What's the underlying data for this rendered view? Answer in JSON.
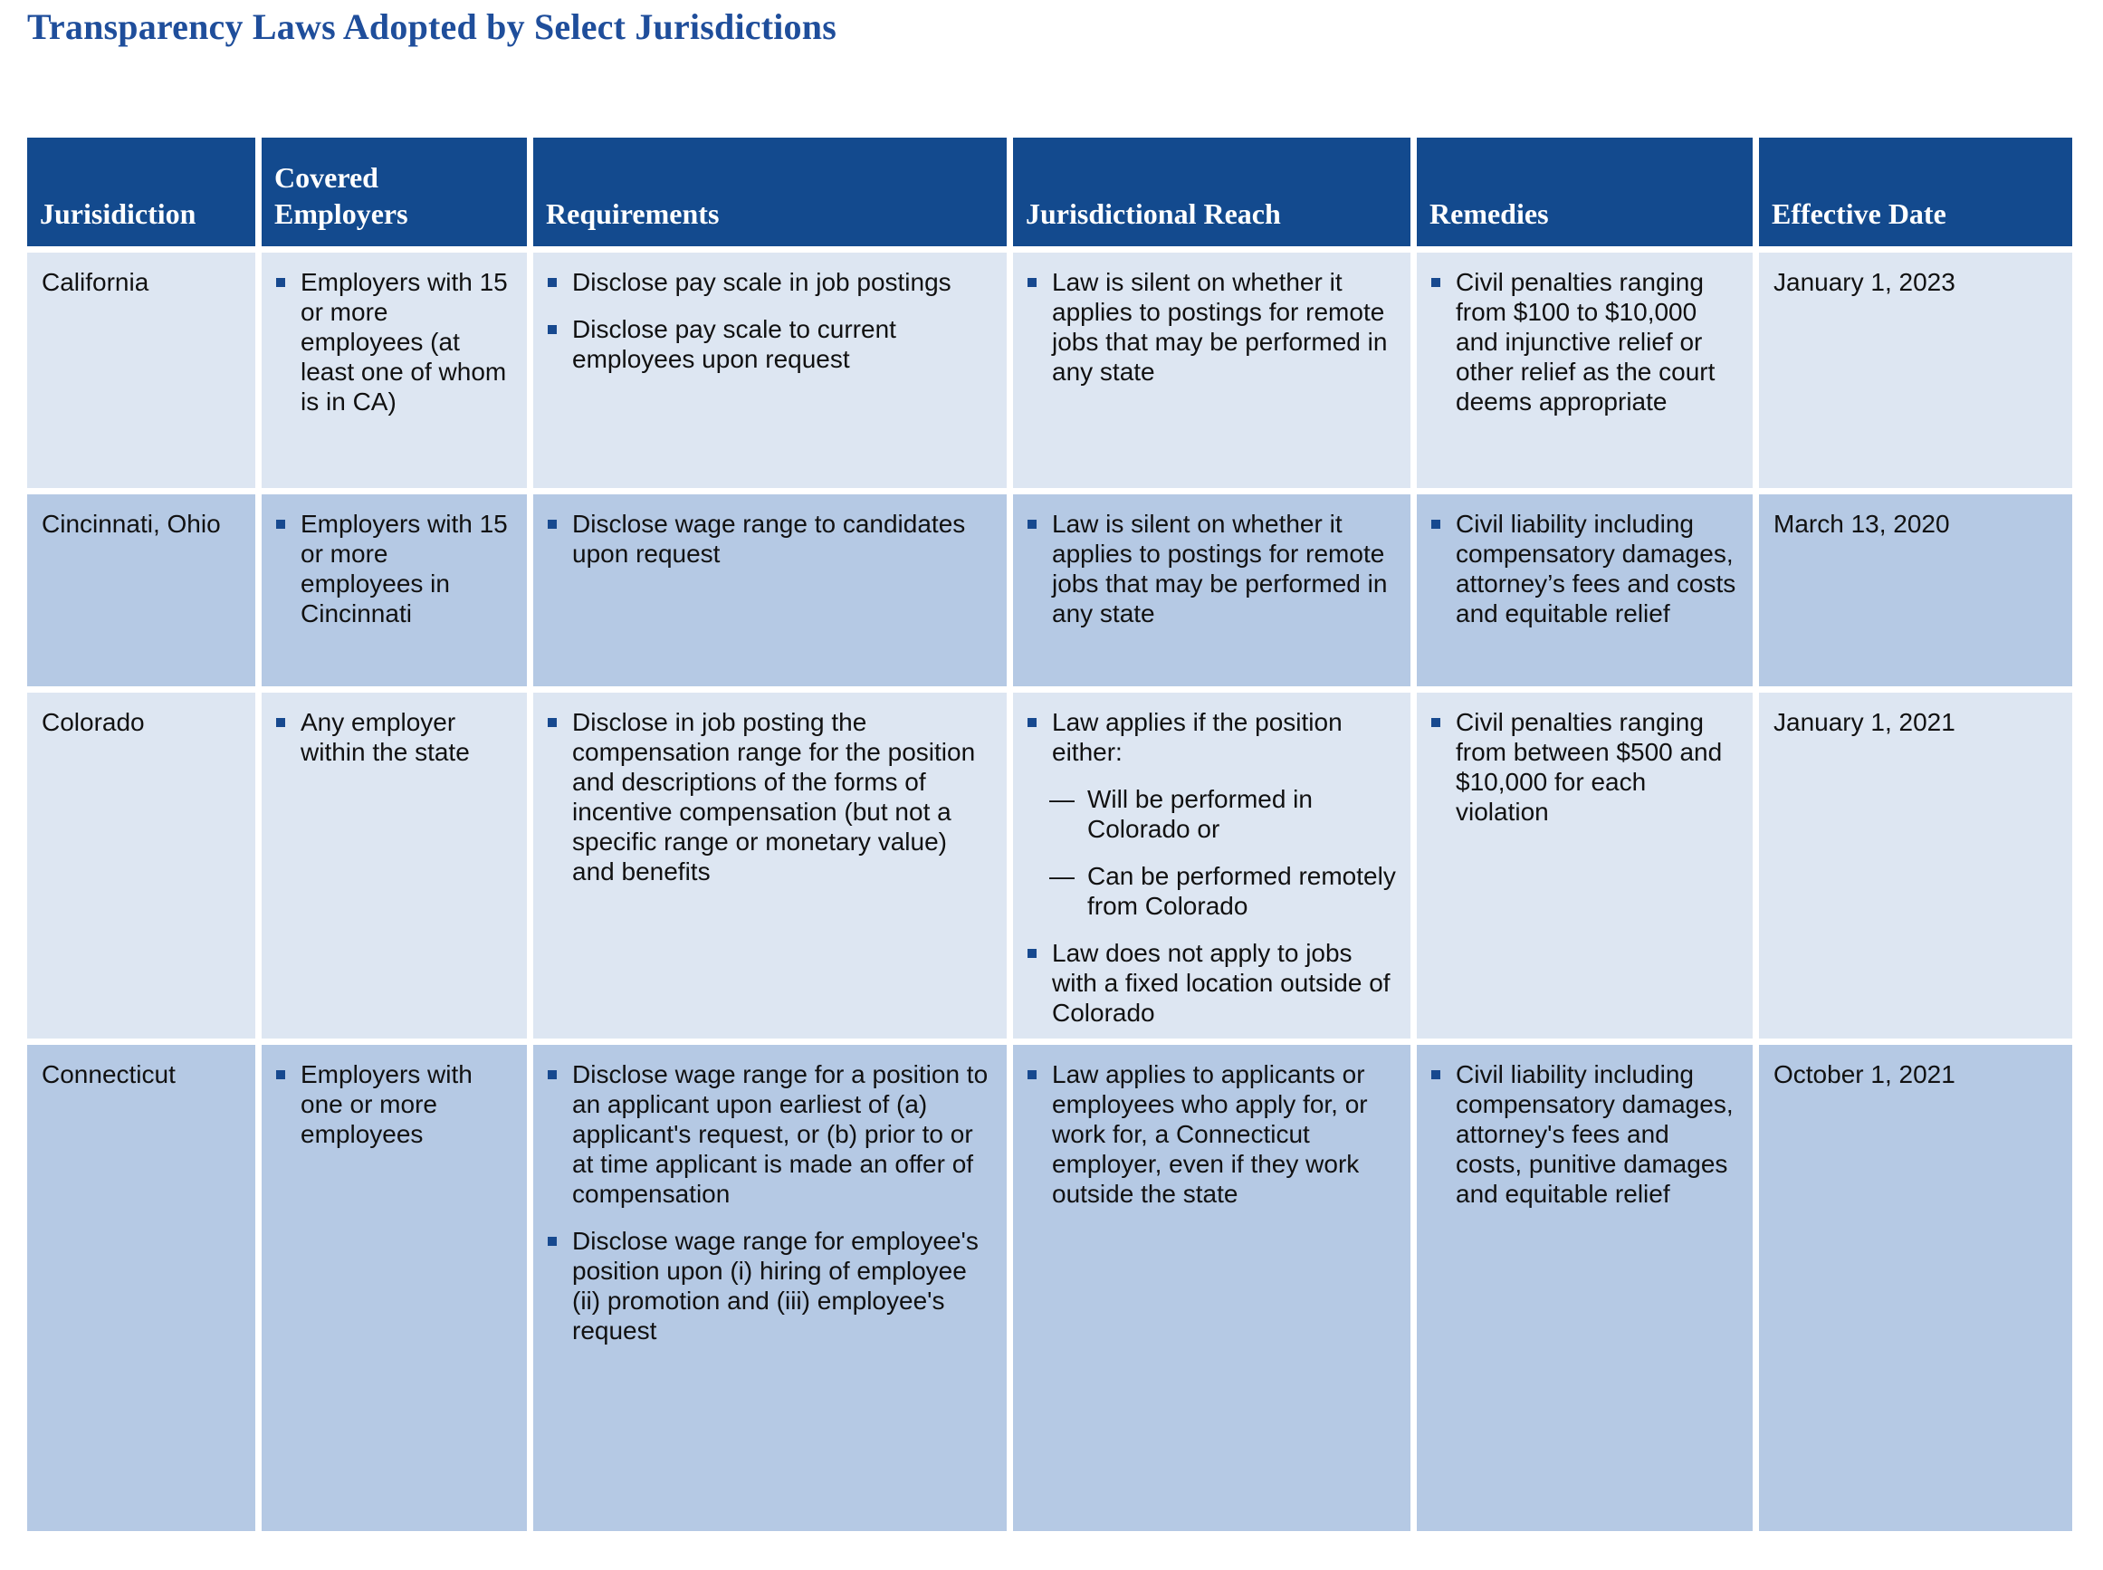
{
  "title": "Transparency Laws Adopted by Select Jurisdictions",
  "colors": {
    "title_text": "#1F4E9B",
    "header_bg": "#134A8E",
    "header_text": "#FFFFFF",
    "row_light_bg": "#DDE6F2",
    "row_dark_bg": "#B5C9E4",
    "bullet": "#17498F",
    "body_text": "#111111"
  },
  "table": {
    "columns": [
      {
        "key": "jurisdiction",
        "label": "Jurisidiction"
      },
      {
        "key": "covered_employers",
        "label": "Covered Employers"
      },
      {
        "key": "requirements",
        "label": "Requirements"
      },
      {
        "key": "jurisdictional_reach",
        "label": "Jurisdictional Reach"
      },
      {
        "key": "remedies",
        "label": "Remedies"
      },
      {
        "key": "effective_date",
        "label": "Effective Date"
      }
    ],
    "rows": [
      {
        "id": "california",
        "shade": "light",
        "jurisdiction": "California",
        "covered_employers": [
          {
            "marker": "square",
            "text": "Employers with 15 or more employees (at least one of whom is in CA)"
          }
        ],
        "requirements": [
          {
            "marker": "square",
            "text": "Disclose pay scale in job postings"
          },
          {
            "marker": "square",
            "text": "Disclose pay scale to current employees upon request"
          }
        ],
        "jurisdictional_reach": [
          {
            "marker": "square",
            "text": "Law is silent on whether it applies to postings for remote jobs that may be performed in any state"
          }
        ],
        "remedies": [
          {
            "marker": "square",
            "text": "Civil penalties ranging from $100 to $10,000 and injunctive relief or other relief as the court deems appropriate"
          }
        ],
        "effective_date": "January 1, 2023"
      },
      {
        "id": "cincinnati-ohio",
        "shade": "dark",
        "jurisdiction": "Cincinnati, Ohio",
        "covered_employers": [
          {
            "marker": "square",
            "text": "Employers with 15 or more employees in Cincinnati"
          }
        ],
        "requirements": [
          {
            "marker": "square",
            "text": "Disclose wage range to candidates upon request"
          }
        ],
        "jurisdictional_reach": [
          {
            "marker": "square",
            "text": "Law is silent on whether it applies to postings for remote jobs that may be performed in any state"
          }
        ],
        "remedies": [
          {
            "marker": "square",
            "text": "Civil liability including compensatory damages, attorney’s fees and costs and equitable relief"
          }
        ],
        "effective_date": "March 13, 2020"
      },
      {
        "id": "colorado",
        "shade": "light",
        "jurisdiction": "Colorado",
        "covered_employers": [
          {
            "marker": "square",
            "text": "Any employer within the state"
          }
        ],
        "requirements": [
          {
            "marker": "square",
            "text": "Disclose in job posting the compensation range for the position and descriptions of the forms of incentive compensation (but not a specific range or monetary value) and benefits"
          }
        ],
        "jurisdictional_reach": [
          {
            "marker": "square",
            "text": "Law applies if the position either:"
          },
          {
            "marker": "dash",
            "text": "Will be performed in Colorado or"
          },
          {
            "marker": "dash",
            "text": "Can be performed remotely from Colorado"
          },
          {
            "marker": "square",
            "text": "Law does not apply to jobs with a fixed location outside of Colorado"
          }
        ],
        "remedies": [
          {
            "marker": "square",
            "text": "Civil penalties ranging from between $500 and $10,000 for each violation"
          }
        ],
        "effective_date": "January 1, 2021"
      },
      {
        "id": "connecticut",
        "shade": "dark",
        "jurisdiction": "Connecticut",
        "covered_employers": [
          {
            "marker": "square",
            "text": "Employers with one or more employees"
          }
        ],
        "requirements": [
          {
            "marker": "square",
            "text": "Disclose wage range for a position to an applicant upon earliest of (a) applicant's request, or (b) prior to or at time applicant is made an offer of compensation"
          },
          {
            "marker": "square",
            "text": "Disclose wage range for employee's position upon (i) hiring of employee (ii) promotion and (iii) employee's request"
          }
        ],
        "jurisdictional_reach": [
          {
            "marker": "square",
            "text": "Law applies to applicants or employees who apply for, or work for, a Connecticut employer, even if they work outside the state"
          }
        ],
        "remedies": [
          {
            "marker": "square",
            "text": "Civil liability including compensatory damages, attorney's fees and costs, punitive damages and equitable relief"
          }
        ],
        "effective_date": "October 1, 2021"
      }
    ]
  }
}
